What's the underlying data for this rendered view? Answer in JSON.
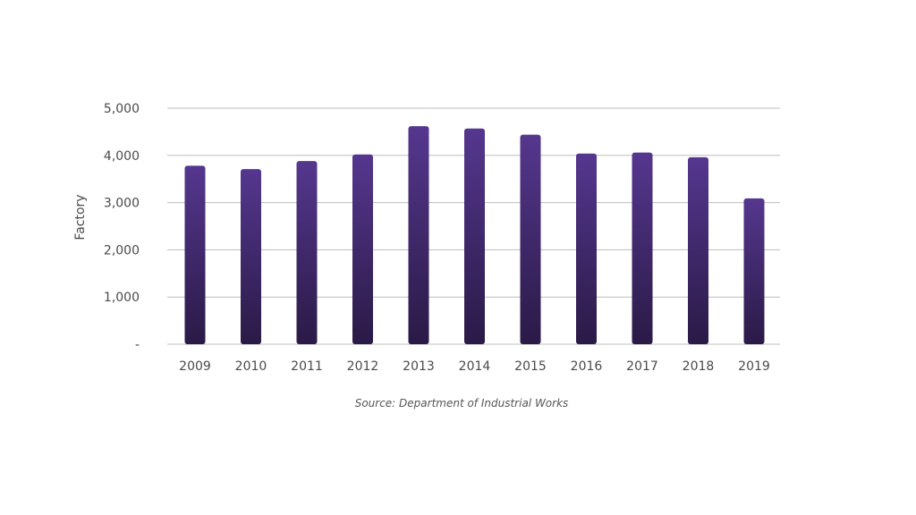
{
  "chart_data": {
    "type": "bar",
    "title": "",
    "xlabel": "",
    "ylabel": "Factory",
    "categories": [
      "2009",
      "2010",
      "2011",
      "2012",
      "2013",
      "2014",
      "2015",
      "2016",
      "2017",
      "2018",
      "2019"
    ],
    "values": [
      3780,
      3710,
      3880,
      4020,
      4620,
      4570,
      4440,
      4040,
      4060,
      3960,
      3090
    ],
    "ylim": [
      0,
      5000
    ],
    "yticks": [
      0,
      1000,
      2000,
      3000,
      4000,
      5000
    ],
    "ytick_labels": [
      "-",
      "1,000",
      "2,000",
      "3,000",
      "4,000",
      "5,000"
    ],
    "grid": true,
    "legend": "none",
    "bar_color_top": "#55378f",
    "bar_color_bottom": "#2a1a46"
  },
  "source": "Source: Department of Industrial Works"
}
